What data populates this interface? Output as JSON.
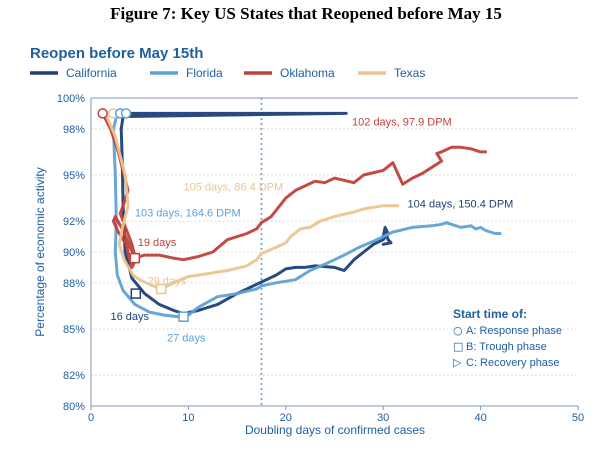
{
  "figure_caption": "Figure 7: Key US States that Reopened before May 15",
  "chart_data": {
    "type": "line",
    "title": "Reopen before May 15th",
    "xlabel": "Doubling days of confirmed cases",
    "ylabel": "Percentage of economic activity",
    "xlim": [
      0,
      50
    ],
    "ylim": [
      80,
      100
    ],
    "x_ticks": [
      0,
      10,
      20,
      30,
      40,
      50
    ],
    "y_ticks": [
      80,
      82,
      85,
      88,
      90,
      92,
      95,
      98,
      100
    ],
    "y_tick_labels": [
      "80%",
      "82%",
      "85%",
      "88%",
      "90%",
      "92%",
      "95%",
      "98%",
      "100%"
    ],
    "grid": "horizontal dotted",
    "reference_line_x": 17.5,
    "legend_position": "top",
    "series": [
      {
        "name": "California",
        "color": "#1f3f7a",
        "x": [
          3.3,
          26.2,
          26.2,
          3.3,
          3.1,
          3.2,
          3.3,
          3.5,
          4.2,
          5.5,
          7,
          8.5,
          9.5,
          11,
          13,
          15,
          17,
          19,
          20,
          21,
          22,
          23,
          25,
          26,
          27,
          28,
          29,
          30,
          30.5,
          30.2,
          30.0,
          30.3,
          30.5,
          30.8,
          30.0
        ],
        "y": [
          99.0,
          99.0,
          99.0,
          98.8,
          98,
          96,
          93,
          90,
          88.3,
          87.3,
          86.6,
          86.2,
          86.0,
          86.2,
          86.6,
          87.3,
          87.9,
          88.5,
          88.9,
          89.0,
          89.0,
          89.1,
          89.0,
          88.8,
          89.5,
          90.0,
          90.5,
          90.8,
          91.2,
          91.6,
          91.0,
          91.2,
          90.8,
          90.6,
          90.5
        ]
      },
      {
        "name": "Florida",
        "color": "#5fa2d6",
        "x": [
          2.7,
          2.3,
          2.5,
          2.6,
          2.5,
          2.7,
          3.3,
          4.5,
          6,
          7.5,
          9,
          9.8,
          11,
          13,
          15,
          17,
          17.5,
          19,
          21,
          22.5,
          24,
          25,
          26,
          27.5,
          29,
          30,
          31,
          33,
          35,
          36,
          36.5,
          37,
          38,
          39,
          39.5,
          40,
          40.5,
          41,
          41.5,
          42
        ],
        "y": [
          99.0,
          98,
          95,
          92,
          90,
          88.5,
          87.5,
          86.6,
          86.1,
          85.9,
          85.8,
          85.8,
          86.4,
          87.1,
          87.3,
          87.6,
          87.8,
          88.0,
          88.2,
          88.8,
          89.2,
          89.5,
          89.8,
          90.3,
          90.7,
          91.0,
          91.3,
          91.6,
          91.7,
          91.8,
          91.9,
          91.8,
          91.6,
          91.7,
          91.5,
          91.6,
          91.4,
          91.3,
          91.2,
          91.2
        ]
      },
      {
        "name": "Oklahoma",
        "color": "#c0413a",
        "x": [
          1.2,
          2,
          2.8,
          3.4,
          3.8,
          3.3,
          3.0,
          3.6,
          4.2,
          4.6,
          4.2,
          3.6,
          2.8,
          2.3,
          2.5,
          3.2,
          4.0,
          4.4,
          4.5,
          5.5,
          7,
          8.5,
          9.5,
          11,
          12.5,
          14,
          16,
          17,
          17.5,
          18.5,
          20,
          21,
          23,
          24,
          25,
          27,
          28,
          30,
          31,
          32,
          33,
          34,
          35,
          36,
          35.5,
          36,
          37,
          38,
          39,
          40,
          40.5
        ],
        "y": [
          99.0,
          98,
          96.5,
          95,
          94,
          93,
          92.5,
          91.5,
          90.5,
          89.5,
          89.0,
          90.5,
          91.3,
          92.0,
          92.3,
          91.5,
          90.3,
          89.8,
          89.6,
          89.8,
          89.8,
          89.6,
          89.5,
          89.7,
          90.0,
          90.8,
          91.2,
          91.5,
          91.9,
          92.3,
          93.5,
          94.0,
          94.6,
          94.5,
          94.8,
          94.5,
          95.0,
          95.3,
          95.8,
          94.4,
          94.8,
          95.1,
          95.5,
          95.9,
          96.4,
          96.5,
          96.8,
          96.8,
          96.7,
          96.5,
          96.5
        ]
      },
      {
        "name": "Texas",
        "color": "#ecc48f",
        "x": [
          1.5,
          2.5,
          3.5,
          3.8,
          3.2,
          2.9,
          3.4,
          4.3,
          5,
          6,
          7.2,
          8.5,
          10,
          12,
          14,
          16,
          17,
          17.5,
          19,
          20,
          20.5,
          21.5,
          22.5,
          23.5,
          25,
          27,
          28,
          29,
          30,
          31.5
        ],
        "y": [
          99.0,
          97.5,
          95,
          93,
          91.5,
          90.5,
          89.5,
          88.5,
          88.2,
          87.9,
          87.6,
          88.0,
          88.4,
          88.6,
          88.8,
          89.1,
          89.5,
          89.9,
          90.3,
          90.6,
          91.0,
          91.5,
          91.6,
          92.0,
          92.3,
          92.6,
          92.8,
          92.9,
          93.0,
          93.0
        ]
      }
    ],
    "annotations": [
      {
        "text": "102 days, 97.9 DPM",
        "x": 26.8,
        "y": 98.2,
        "color": "#c0413a"
      },
      {
        "text": "105 days, 86.4 DPM",
        "x": 9.5,
        "y": 94.0,
        "color": "#ecc48f"
      },
      {
        "text": "103 days, 164.6 DPM",
        "x": 4.5,
        "y": 92.3,
        "color": "#5fa2d6"
      },
      {
        "text": "104 days, 150.4 DPM",
        "x": 32.5,
        "y": 92.9,
        "color": "#1f3f7a"
      },
      {
        "text": "19 days",
        "x": 4.8,
        "y": 90.4,
        "color": "#c0413a"
      },
      {
        "text": "29 days",
        "x": 5.8,
        "y": 87.9,
        "color": "#ecc48f"
      },
      {
        "text": "16 days",
        "x": 2.0,
        "y": 85.6,
        "color": "#1f3f7a"
      },
      {
        "text": "27 days",
        "x": 7.8,
        "y": 84.2,
        "color": "#5fa2d6"
      }
    ],
    "markers": [
      {
        "shape": "circle",
        "x": 1.2,
        "y": 99.0,
        "color": "#c0413a"
      },
      {
        "shape": "circle",
        "x": 2.3,
        "y": 99.0,
        "color": "#ecc48f"
      },
      {
        "shape": "circle",
        "x": 3.0,
        "y": 99.0,
        "color": "#5fa2d6"
      },
      {
        "shape": "circle",
        "x": 3.6,
        "y": 99.0,
        "color": "#5fa2d6"
      },
      {
        "shape": "square",
        "x": 4.5,
        "y": 89.6,
        "color": "#c0413a"
      },
      {
        "shape": "square",
        "x": 4.6,
        "y": 87.3,
        "color": "#1f3f7a"
      },
      {
        "shape": "square",
        "x": 7.2,
        "y": 87.6,
        "color": "#ecc48f"
      },
      {
        "shape": "square",
        "x": 9.5,
        "y": 85.8,
        "color": "#5fa2d6"
      }
    ],
    "start_time_legend": {
      "title": "Start time of:",
      "items": [
        {
          "symbol": "○",
          "label": "A: Response phase"
        },
        {
          "symbol": "□",
          "label": "B: Trough phase"
        },
        {
          "symbol": "▷",
          "label": "C: Recovery phase"
        }
      ]
    }
  }
}
